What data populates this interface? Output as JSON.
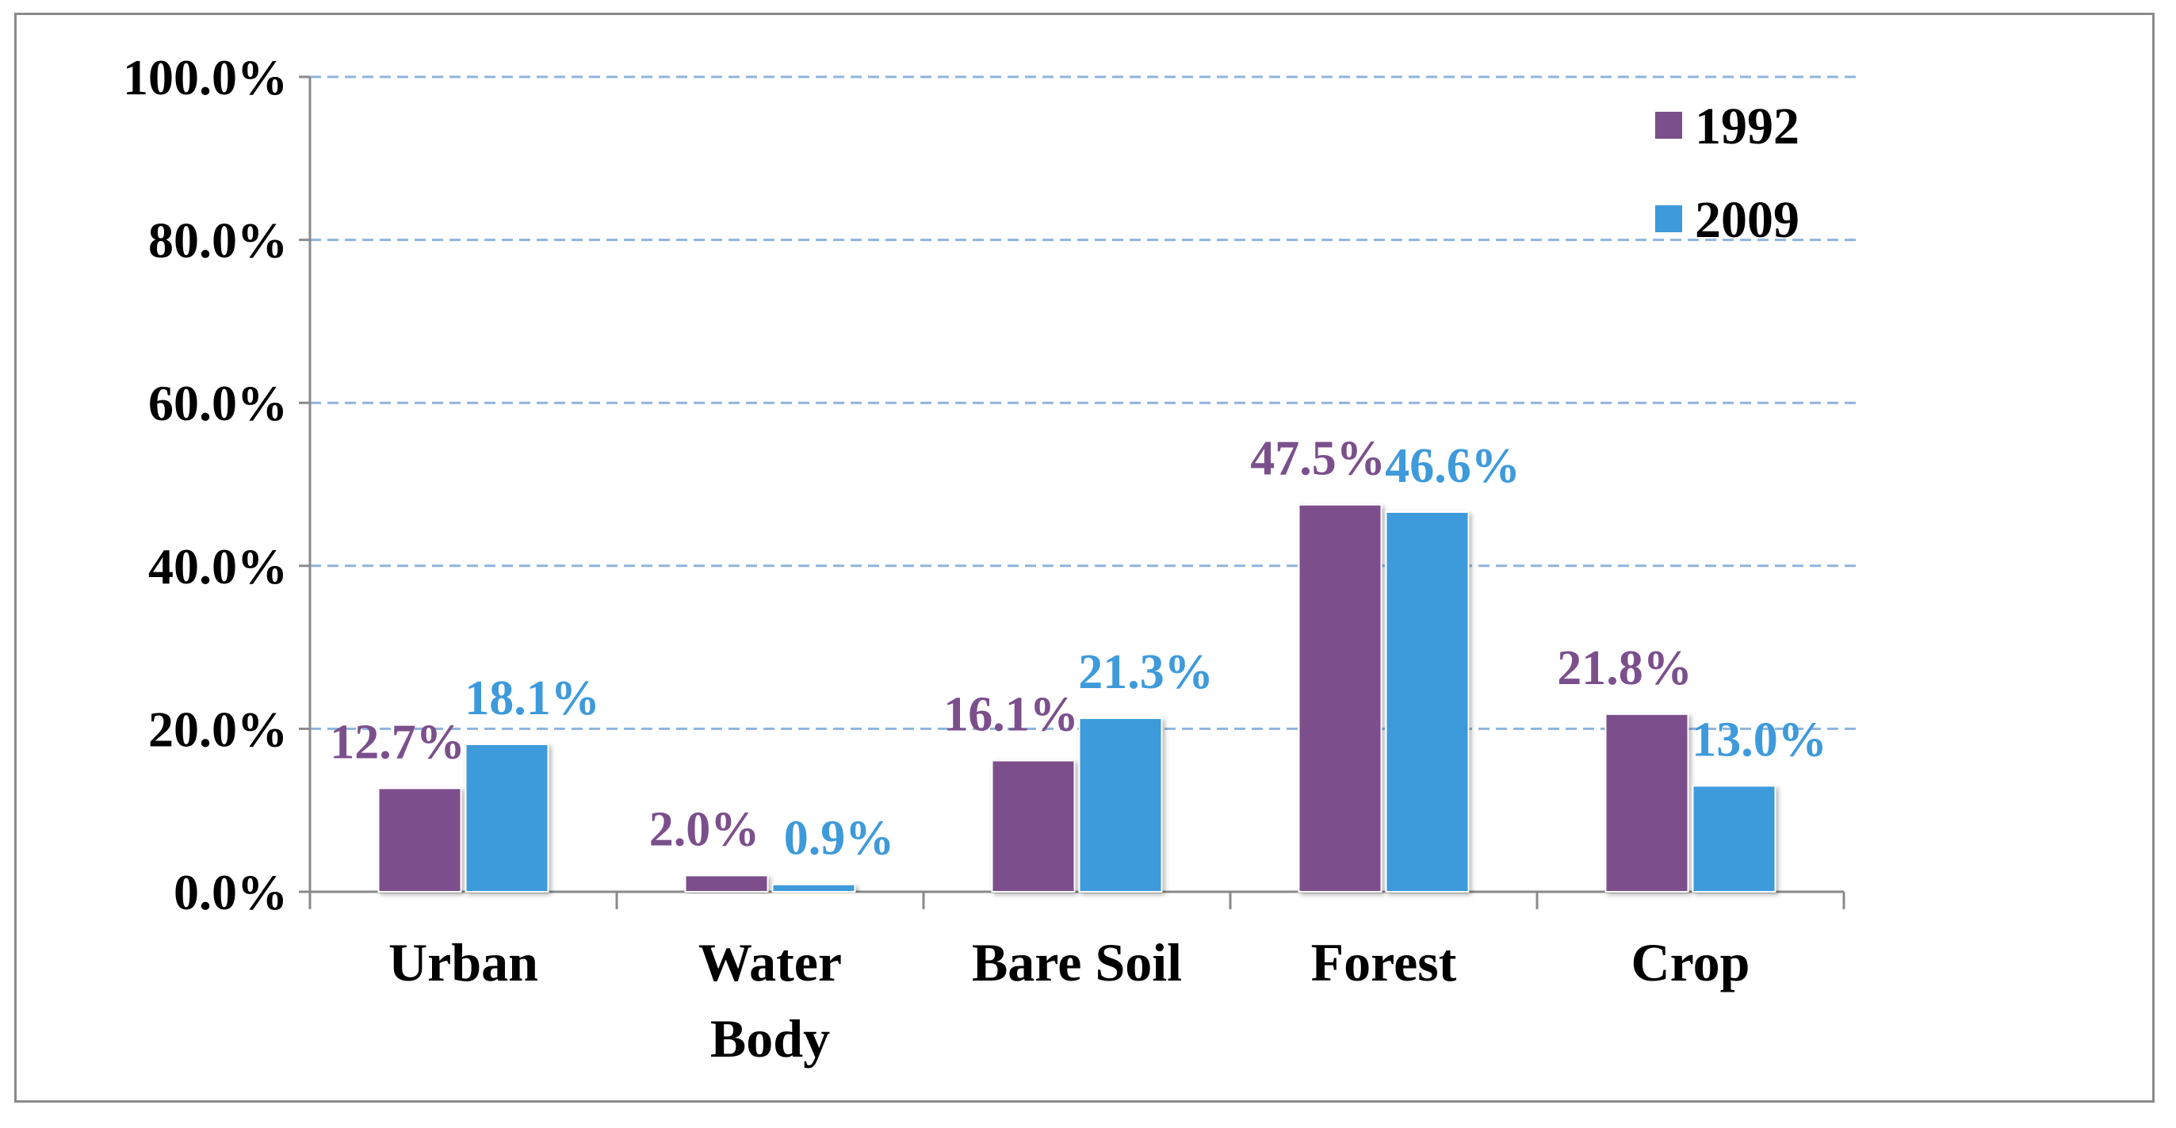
{
  "chart_data": {
    "type": "bar",
    "title": "",
    "xlabel": "",
    "ylabel": "",
    "ylim": [
      0,
      100
    ],
    "yticks": [
      "0.0%",
      "20.0%",
      "40.0%",
      "60.0%",
      "80.0%",
      "100.0%"
    ],
    "ytick_values": [
      0,
      20,
      40,
      60,
      80,
      100
    ],
    "categories": [
      [
        "Urban"
      ],
      [
        "Water",
        "Body"
      ],
      [
        "Bare Soil"
      ],
      [
        "Forest"
      ],
      [
        "Crop"
      ]
    ],
    "series": [
      {
        "name": "1992",
        "color": "#7B4F8C",
        "values": [
          12.7,
          2.0,
          16.1,
          47.5,
          21.8
        ],
        "labels": [
          "12.7%",
          "2.0%",
          "16.1%",
          "47.5%",
          "21.8%"
        ]
      },
      {
        "name": "2009",
        "color": "#3E9ADB",
        "values": [
          18.1,
          0.9,
          21.3,
          46.6,
          13.0
        ],
        "labels": [
          "18.1%",
          "0.9%",
          "21.3%",
          "46.6%",
          "13.0%"
        ]
      }
    ],
    "grid": true,
    "legend": "top-right"
  }
}
